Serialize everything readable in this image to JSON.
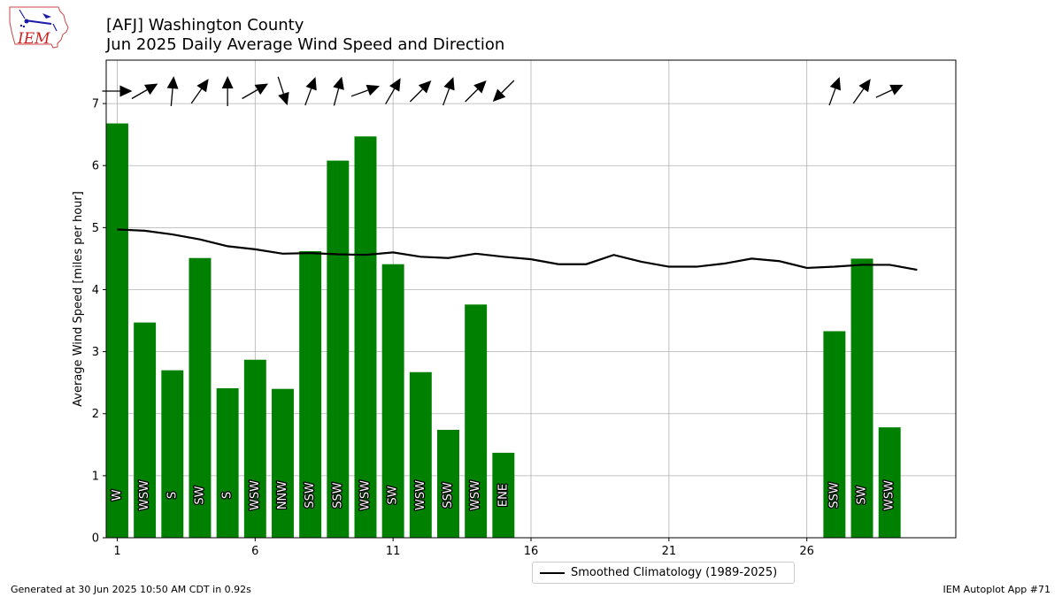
{
  "header": {
    "title_line1": "[AFJ] Washington County",
    "title_line2": "Jun 2025 Daily Average Wind Speed and Direction"
  },
  "logo": {
    "text": "IEM"
  },
  "footer": {
    "generated": "Generated at 30 Jun 2025 10:50 AM CDT in 0.92s",
    "app": "IEM Autoplot App #71"
  },
  "legend": {
    "label": "Smoothed Climatology (1989-2025)"
  },
  "chart_data": {
    "type": "bar",
    "ylabel": "Average Wind Speed [miles per hour]",
    "xlabel": "",
    "xlim": [
      0.6,
      31.4
    ],
    "ylim": [
      0,
      7.7
    ],
    "xticks": [
      1,
      6,
      11,
      16,
      21,
      26
    ],
    "yticks": [
      0,
      1,
      2,
      3,
      4,
      5,
      6,
      7
    ],
    "grid": true,
    "legend_position": "bottom-center",
    "colors": {
      "bar": "#008000",
      "climatology": "#000000",
      "arrow": "#000000"
    },
    "bars": [
      {
        "day": 1,
        "speed": 6.68,
        "dir_label": "W",
        "dir_deg": 270
      },
      {
        "day": 2,
        "speed": 3.47,
        "dir_label": "WSW",
        "dir_deg": 240
      },
      {
        "day": 3,
        "speed": 2.7,
        "dir_label": "S",
        "dir_deg": 185
      },
      {
        "day": 4,
        "speed": 4.51,
        "dir_label": "SW",
        "dir_deg": 215
      },
      {
        "day": 5,
        "speed": 2.41,
        "dir_label": "S",
        "dir_deg": 180
      },
      {
        "day": 6,
        "speed": 2.87,
        "dir_label": "WSW",
        "dir_deg": 240
      },
      {
        "day": 7,
        "speed": 2.4,
        "dir_label": "NNW",
        "dir_deg": 342
      },
      {
        "day": 8,
        "speed": 4.62,
        "dir_label": "SSW",
        "dir_deg": 200
      },
      {
        "day": 9,
        "speed": 6.08,
        "dir_label": "SSW",
        "dir_deg": 195
      },
      {
        "day": 10,
        "speed": 6.47,
        "dir_label": "WSW",
        "dir_deg": 250
      },
      {
        "day": 11,
        "speed": 4.41,
        "dir_label": "SW",
        "dir_deg": 210
      },
      {
        "day": 12,
        "speed": 2.67,
        "dir_label": "WSW",
        "dir_deg": 225
      },
      {
        "day": 13,
        "speed": 1.74,
        "dir_label": "SSW",
        "dir_deg": 200
      },
      {
        "day": 14,
        "speed": 3.76,
        "dir_label": "WSW",
        "dir_deg": 225
      },
      {
        "day": 15,
        "speed": 1.37,
        "dir_label": "ENE",
        "dir_deg": 45
      },
      {
        "day": 27,
        "speed": 3.33,
        "dir_label": "SSW",
        "dir_deg": 200
      },
      {
        "day": 28,
        "speed": 4.5,
        "dir_label": "SW",
        "dir_deg": 215
      },
      {
        "day": 29,
        "speed": 1.78,
        "dir_label": "WSW",
        "dir_deg": 245
      }
    ],
    "climatology": {
      "name": "Smoothed Climatology (1989-2025)",
      "x": [
        1,
        2,
        3,
        4,
        5,
        6,
        7,
        8,
        9,
        10,
        11,
        12,
        13,
        14,
        15,
        16,
        17,
        18,
        19,
        20,
        21,
        22,
        23,
        24,
        25,
        26,
        27,
        28,
        29,
        30
      ],
      "y": [
        4.97,
        4.95,
        4.89,
        4.81,
        4.7,
        4.65,
        4.58,
        4.59,
        4.57,
        4.56,
        4.6,
        4.53,
        4.51,
        4.58,
        4.53,
        4.49,
        4.41,
        4.41,
        4.56,
        4.45,
        4.37,
        4.37,
        4.42,
        4.5,
        4.46,
        4.35,
        4.37,
        4.4,
        4.4,
        4.32
      ]
    }
  }
}
